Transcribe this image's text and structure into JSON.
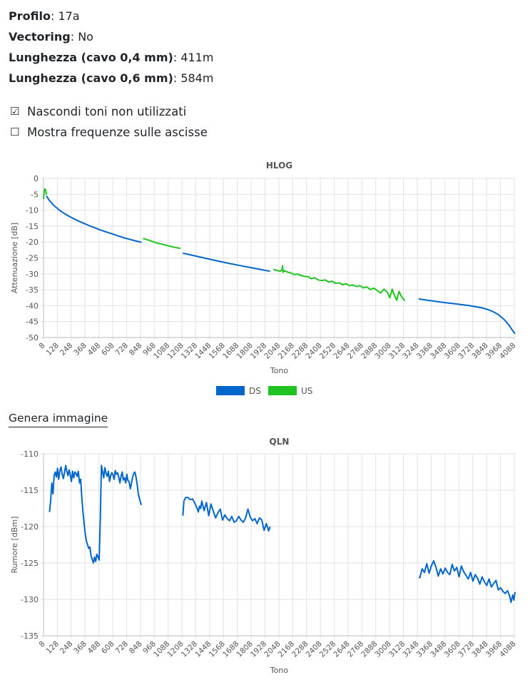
{
  "info": {
    "profilo_label": "Profilo",
    "profilo_value": "17a",
    "vectoring_label": "Vectoring",
    "vectoring_value": "No",
    "len04_label": "Lunghezza (cavo 0,4 mm)",
    "len04_value": "411m",
    "len06_label": "Lunghezza (cavo 0,6 mm)",
    "len06_value": "584m"
  },
  "options": [
    {
      "label": "Nascondi toni non utilizzati",
      "checked": true
    },
    {
      "label": "Mostra frequenze sulle ascisse",
      "checked": false
    }
  ],
  "generate_label": "Genera immagine",
  "colors": {
    "ds": "#0066cc",
    "us": "#1fc420",
    "grid": "#e2e2e2"
  },
  "chart_data": [
    {
      "type": "line",
      "title": "HLOG",
      "xlabel": "Tono",
      "ylabel": "Attenuazione [dB]",
      "xlim": [
        8,
        4095
      ],
      "ylim": [
        -50,
        0
      ],
      "yticks": [
        0,
        -5,
        -10,
        -15,
        -20,
        -25,
        -30,
        -35,
        -40,
        -45,
        -50
      ],
      "xticks": [
        8,
        128,
        248,
        368,
        488,
        608,
        728,
        848,
        968,
        1088,
        1208,
        1328,
        1448,
        1568,
        1688,
        1808,
        1928,
        2048,
        2168,
        2288,
        2408,
        2528,
        2648,
        2768,
        2888,
        3008,
        3128,
        3248,
        3368,
        3488,
        3608,
        3728,
        3848,
        3968,
        4088
      ],
      "legend": "bottom",
      "series": [
        {
          "name": "DS",
          "segments": [
            {
              "x": [
                33,
                60,
                100,
                150,
                200,
                250,
                300,
                350,
                400,
                450,
                500,
                550,
                600,
                650,
                700,
                750,
                800,
                859
              ],
              "y": [
                -5.5,
                -7,
                -8.6,
                -10.1,
                -11.3,
                -12.3,
                -13.2,
                -14,
                -14.8,
                -15.5,
                -16.2,
                -16.8,
                -17.4,
                -18,
                -18.6,
                -19.1,
                -19.6,
                -20.1
              ]
            },
            {
              "x": [
                1216,
                1300,
                1400,
                1500,
                1600,
                1700,
                1800,
                1900,
                1971
              ],
              "y": [
                -23.5,
                -24.2,
                -25,
                -25.8,
                -26.6,
                -27.3,
                -28,
                -28.7,
                -29.2
              ]
            },
            {
              "x": [
                3260,
                3400,
                3500,
                3600,
                3700,
                3800,
                3850,
                3900,
                3950,
                4000,
                4040,
                4070,
                4095
              ],
              "y": [
                -37.9,
                -38.6,
                -39.1,
                -39.5,
                -40,
                -40.6,
                -41.1,
                -41.8,
                -42.8,
                -44.3,
                -46,
                -47.6,
                -48.8
              ]
            }
          ]
        },
        {
          "name": "US",
          "segments": [
            {
              "x": [
                8,
                14,
                20,
                25,
                30,
                33
              ],
              "y": [
                -6.5,
                -4,
                -3.3,
                -3.6,
                -4.3,
                -5.2
              ]
            },
            {
              "x": [
                870,
                900,
                950,
                1000,
                1050,
                1100,
                1150,
                1195
              ],
              "y": [
                -18.9,
                -19.2,
                -19.8,
                -20.4,
                -20.8,
                -21.3,
                -21.7,
                -22
              ]
            },
            {
              "x": [
                2000,
                2030,
                2060,
                2075,
                2080,
                2085,
                2095,
                2120,
                2150,
                2180,
                2210,
                2240,
                2270,
                2300,
                2330,
                2360,
                2390,
                2420,
                2450,
                2480,
                2510,
                2540,
                2570,
                2600,
                2630,
                2660,
                2690,
                2720,
                2750,
                2780,
                2810,
                2840,
                2870,
                2900,
                2930,
                2960,
                2990,
                3010,
                3030,
                3050,
                3070,
                3090,
                3110,
                3140
              ],
              "y": [
                -28.6,
                -28.9,
                -29.2,
                -28.8,
                -27.5,
                -29.5,
                -29,
                -29.4,
                -29.7,
                -30.2,
                -30.1,
                -30.5,
                -30.8,
                -30.9,
                -31.5,
                -31.2,
                -31.9,
                -32.1,
                -31.9,
                -32.6,
                -32.3,
                -33,
                -32.8,
                -33.4,
                -33.1,
                -33.7,
                -33.5,
                -34,
                -33.7,
                -34.4,
                -34.1,
                -34.9,
                -34.5,
                -35.2,
                -36,
                -34.8,
                -35.9,
                -37.5,
                -34.8,
                -36.8,
                -38.3,
                -35.5,
                -37.1,
                -38.4
              ]
            }
          ]
        }
      ]
    },
    {
      "type": "line",
      "title": "QLN",
      "xlabel": "Tono",
      "ylabel": "Rumore [dBm]",
      "xlim": [
        8,
        4095
      ],
      "ylim": [
        -135,
        -110
      ],
      "yticks": [
        -110,
        -115,
        -120,
        -125,
        -130,
        -135
      ],
      "xticks": [
        8,
        128,
        248,
        368,
        488,
        608,
        728,
        848,
        968,
        1088,
        1208,
        1328,
        1448,
        1568,
        1688,
        1808,
        1928,
        2048,
        2168,
        2288,
        2408,
        2528,
        2648,
        2768,
        2888,
        3008,
        3128,
        3248,
        3368,
        3488,
        3608,
        3728,
        3848,
        3968,
        4088
      ],
      "series": [
        {
          "name": "DS",
          "segments": [
            {
              "x": [
                60,
                70,
                80,
                90,
                100,
                110,
                120,
                130,
                140,
                150,
                160,
                170,
                180,
                190,
                200,
                210,
                220,
                230,
                240,
                250,
                260,
                270,
                280,
                290,
                300,
                310,
                320,
                330,
                340,
                350,
                360,
                370,
                380,
                390,
                400,
                410,
                420,
                430,
                440,
                450,
                460,
                470,
                480,
                490,
                500,
                510,
                520,
                530,
                540,
                550,
                560,
                570,
                580,
                590,
                600,
                610,
                620,
                630,
                640,
                650,
                660,
                670,
                680,
                690,
                700,
                710,
                720,
                730,
                740,
                750,
                760,
                770,
                780,
                790,
                800,
                810,
                820,
                830,
                840,
                850,
                859
              ],
              "y": [
                -118,
                -116.5,
                -114,
                -115.5,
                -113,
                -112.5,
                -113.2,
                -112,
                -113.5,
                -112.3,
                -111.8,
                -112.8,
                -113.4,
                -112.6,
                -111.6,
                -112.4,
                -113,
                -112.2,
                -112.9,
                -113.8,
                -112.4,
                -113.3,
                -112.5,
                -112.7,
                -113.1,
                -112.4,
                -114,
                -113.5,
                -116,
                -118,
                -119.5,
                -121,
                -122,
                -122.5,
                -123,
                -122.8,
                -124,
                -124.5,
                -125,
                -124.2,
                -124.8,
                -123.8,
                -124.1,
                -124.6,
                -119,
                -111.6,
                -112.5,
                -113.3,
                -111.9,
                -112.7,
                -113.1,
                -112.4,
                -113.8,
                -113,
                -112.6,
                -112.9,
                -113.5,
                -112.3,
                -112.8,
                -112.6,
                -113.2,
                -114,
                -113.1,
                -112.5,
                -113.6,
                -113.3,
                -114,
                -112.8,
                -113.7,
                -113.8,
                -114.8,
                -114.1,
                -113.2,
                -112.7,
                -112.5,
                -113.2,
                -114.2,
                -115.5,
                -116.2,
                -116.8,
                -117
              ]
            },
            {
              "x": [
                1216,
                1225,
                1240,
                1260,
                1280,
                1300,
                1320,
                1340,
                1350,
                1360,
                1370,
                1380,
                1400,
                1420,
                1440,
                1460,
                1480,
                1500,
                1520,
                1540,
                1560,
                1580,
                1600,
                1620,
                1640,
                1660,
                1680,
                1700,
                1720,
                1740,
                1760,
                1780,
                1800,
                1820,
                1840,
                1860,
                1880,
                1900,
                1920,
                1940,
                1960,
                1971
              ],
              "y": [
                -118.5,
                -116.5,
                -116,
                -116,
                -116.3,
                -116.2,
                -116.8,
                -117.5,
                -118,
                -117.2,
                -117.5,
                -116.5,
                -117.8,
                -116.7,
                -118.5,
                -116.9,
                -117.9,
                -118.8,
                -118.1,
                -117.6,
                -119.1,
                -118.4,
                -118.9,
                -119.2,
                -118.6,
                -119.4,
                -119.2,
                -118.6,
                -119.1,
                -119.4,
                -118.8,
                -117.6,
                -118.7,
                -119.2,
                -118.9,
                -119.6,
                -118.8,
                -119.1,
                -120.5,
                -119.6,
                -120.6,
                -120
              ]
            },
            {
              "x": [
                3260,
                3270,
                3290,
                3310,
                3330,
                3350,
                3370,
                3390,
                3410,
                3430,
                3450,
                3470,
                3490,
                3510,
                3530,
                3550,
                3570,
                3590,
                3610,
                3630,
                3650,
                3670,
                3690,
                3710,
                3730,
                3750,
                3770,
                3790,
                3810,
                3830,
                3850,
                3870,
                3890,
                3910,
                3930,
                3950,
                3970,
                3990,
                4010,
                4030,
                4050,
                4060,
                4075,
                4085,
                4095
              ],
              "y": [
                -127,
                -127,
                -125.8,
                -126.3,
                -125.1,
                -126.4,
                -125.4,
                -124.7,
                -125.6,
                -126.8,
                -125.8,
                -126.5,
                -125.7,
                -126.3,
                -126.6,
                -125.2,
                -126.1,
                -125.6,
                -126.9,
                -125.4,
                -126.2,
                -126.7,
                -127.2,
                -126.3,
                -127.5,
                -126.6,
                -127.1,
                -127.9,
                -126.9,
                -127.6,
                -128.1,
                -127.2,
                -128.3,
                -127.8,
                -127.4,
                -128.7,
                -128.4,
                -128.9,
                -129.2,
                -128.8,
                -129.6,
                -130.4,
                -129.4,
                -130.1,
                -129
              ]
            }
          ]
        }
      ]
    }
  ]
}
